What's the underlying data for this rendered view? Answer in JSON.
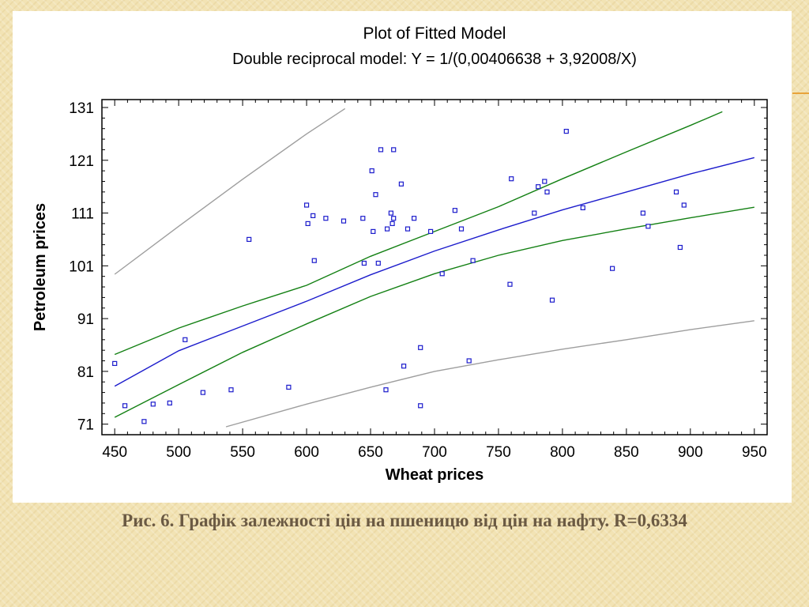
{
  "slide": {
    "caption": "Рис. 6.  Графік залежності цін на пшеницю від цін на нафту. R=0,6334"
  },
  "chart_data": {
    "type": "scatter",
    "title": "Plot of Fitted Model",
    "subtitle": "Double reciprocal model: Y = 1/(0,00406638 + 3,92008/X)",
    "xlabel": "Wheat prices",
    "ylabel": "Petroleum prices",
    "xlim": [
      440,
      960
    ],
    "ylim": [
      69,
      132.5
    ],
    "xticks": [
      450,
      500,
      550,
      600,
      650,
      700,
      750,
      800,
      850,
      900,
      950
    ],
    "yticks": [
      71,
      81,
      91,
      101,
      111,
      121,
      131
    ],
    "grid": false,
    "legend": "none",
    "colors": {
      "points": "#1c1ccc",
      "fit": "#1c1ccc",
      "confidence": "#138013",
      "prediction": "#9e9e9e"
    },
    "points": [
      [
        450,
        82.5
      ],
      [
        458,
        74.5
      ],
      [
        473,
        71.5
      ],
      [
        480,
        74.8
      ],
      [
        493,
        75
      ],
      [
        505,
        87
      ],
      [
        519,
        77
      ],
      [
        541,
        77.5
      ],
      [
        555,
        106
      ],
      [
        586,
        78
      ],
      [
        600,
        112.5
      ],
      [
        601,
        109
      ],
      [
        605,
        110.5
      ],
      [
        606,
        102
      ],
      [
        615,
        110
      ],
      [
        629,
        109.5
      ],
      [
        644,
        110
      ],
      [
        645,
        101.5
      ],
      [
        651,
        119
      ],
      [
        652,
        107.5
      ],
      [
        654,
        114.5
      ],
      [
        656,
        101.5
      ],
      [
        658,
        123
      ],
      [
        662,
        77.5
      ],
      [
        663,
        108
      ],
      [
        666,
        111
      ],
      [
        667,
        109
      ],
      [
        668,
        110
      ],
      [
        668,
        123
      ],
      [
        674,
        116.5
      ],
      [
        676,
        82
      ],
      [
        679,
        108
      ],
      [
        684,
        110
      ],
      [
        689,
        85.5
      ],
      [
        689,
        74.5
      ],
      [
        697,
        107.5
      ],
      [
        706,
        99.5
      ],
      [
        716,
        111.5
      ],
      [
        721,
        108
      ],
      [
        727,
        83
      ],
      [
        730,
        102
      ],
      [
        759,
        97.5
      ],
      [
        760,
        117.5
      ],
      [
        778,
        111
      ],
      [
        781,
        116
      ],
      [
        786,
        117
      ],
      [
        788,
        115
      ],
      [
        792,
        94.5
      ],
      [
        803,
        126.5
      ],
      [
        816,
        112
      ],
      [
        839,
        100.5
      ],
      [
        863,
        111
      ],
      [
        867,
        108.5
      ],
      [
        889,
        115
      ],
      [
        892,
        104.5
      ],
      [
        895,
        112.5
      ]
    ],
    "prediction_upper": [
      [
        450,
        99.4
      ],
      [
        500,
        108.5
      ],
      [
        550,
        117.4
      ],
      [
        600,
        126
      ],
      [
        630,
        130.8
      ]
    ],
    "prediction_lower": [
      [
        537,
        70.5
      ],
      [
        600,
        74.8
      ],
      [
        650,
        78
      ],
      [
        700,
        81
      ],
      [
        750,
        83.2
      ],
      [
        800,
        85.2
      ],
      [
        850,
        87
      ],
      [
        900,
        88.9
      ],
      [
        950,
        90.6
      ]
    ],
    "fit_line": [
      [
        450,
        78.2
      ],
      [
        500,
        84.9
      ],
      [
        550,
        89.6
      ],
      [
        600,
        94.3
      ],
      [
        650,
        99.3
      ],
      [
        700,
        103.8
      ],
      [
        750,
        107.8
      ],
      [
        800,
        111.6
      ],
      [
        850,
        115
      ],
      [
        900,
        118.4
      ],
      [
        950,
        121.5
      ]
    ],
    "confidence_upper": [
      [
        450,
        84.2
      ],
      [
        500,
        89.2
      ],
      [
        550,
        93.4
      ],
      [
        600,
        97.3
      ],
      [
        650,
        102.8
      ],
      [
        700,
        107.5
      ],
      [
        750,
        112.2
      ],
      [
        800,
        117.5
      ],
      [
        850,
        122.6
      ],
      [
        900,
        127.6
      ],
      [
        925,
        130.2
      ]
    ],
    "confidence_lower": [
      [
        450,
        72.3
      ],
      [
        500,
        78.5
      ],
      [
        550,
        84.6
      ],
      [
        600,
        90
      ],
      [
        650,
        95.2
      ],
      [
        700,
        99.5
      ],
      [
        750,
        103
      ],
      [
        800,
        105.8
      ],
      [
        850,
        108
      ],
      [
        900,
        110.1
      ],
      [
        950,
        112.1
      ]
    ]
  }
}
